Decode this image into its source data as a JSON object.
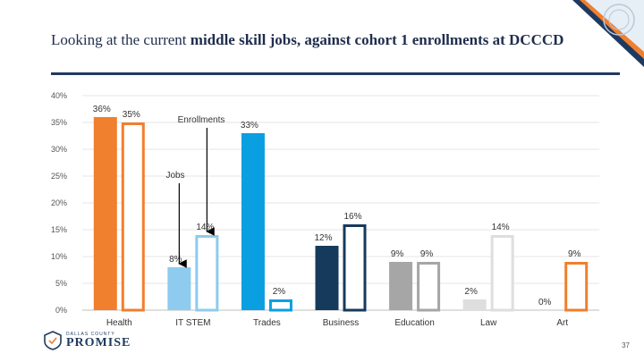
{
  "title": {
    "lead": "Looking at the current ",
    "emphasis": "middle skill jobs, against cohort 1 enrollments at DCCCD"
  },
  "chart_data": {
    "type": "bar",
    "ylim": [
      0,
      40
    ],
    "y_ticks": [
      "0%",
      "5%",
      "10%",
      "15%",
      "20%",
      "25%",
      "30%",
      "35%",
      "40%"
    ],
    "categories": [
      "Health",
      "IT STEM",
      "Trades",
      "Business",
      "Education",
      "Law",
      "Art"
    ],
    "series": [
      {
        "name": "Jobs",
        "values": [
          36,
          8,
          33,
          12,
          9,
          2,
          0
        ],
        "labels": [
          "36%",
          "8%",
          "33%",
          "12%",
          "9%",
          "2%",
          "0%"
        ]
      },
      {
        "name": "Enrollments",
        "values": [
          35,
          14,
          2,
          16,
          9,
          14,
          9
        ],
        "labels": [
          "35%",
          "14%",
          "2%",
          "16%",
          "9%",
          "14%",
          "9%"
        ]
      }
    ],
    "colors": {
      "Health": "#f07f2e",
      "IT STEM": "#8ecbee",
      "Trades": "#0a9fe0",
      "Business": "#163a5c",
      "Education": "#a6a6a6",
      "Law": "#dedede",
      "Art": "#f07f2e"
    },
    "annotations": [
      "Enrollments",
      "Jobs"
    ],
    "grid": true,
    "legend": "none"
  },
  "logo": {
    "small": "DALLAS COUNTY",
    "big": "PROMISE"
  },
  "page_number": "37"
}
